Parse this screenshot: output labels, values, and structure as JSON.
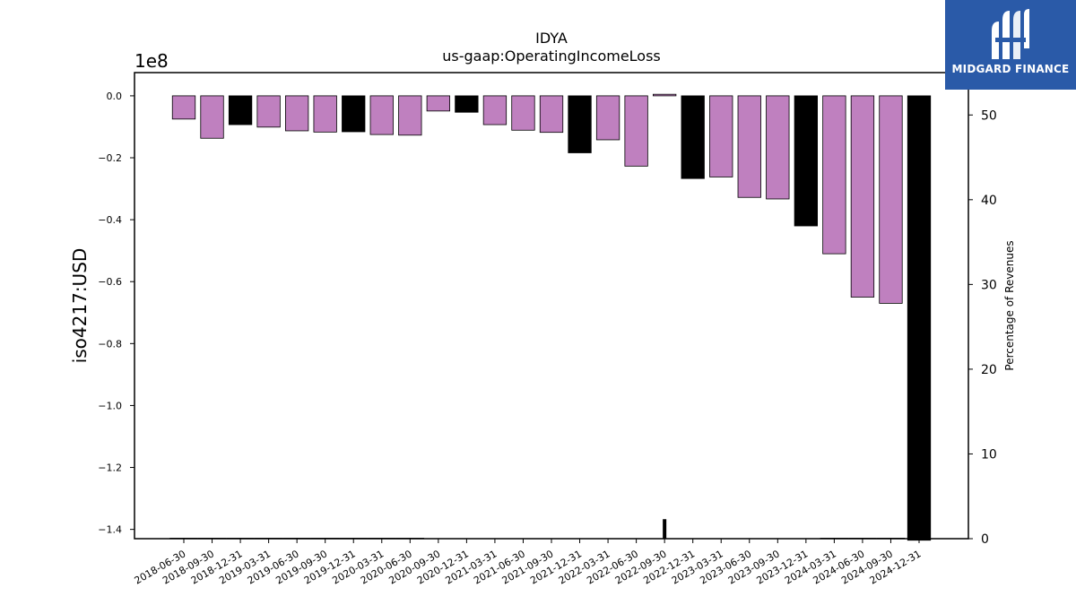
{
  "chart_data": {
    "type": "bar",
    "title": "IDYA",
    "subtitle": "us-gaap:OperatingIncomeLoss",
    "ylabel": "iso4217:USD",
    "y2label": "Percentage of Revenues",
    "offset_label": "1e8",
    "ylim": [
      -1.43,
      0.075
    ],
    "y2lim": [
      0,
      55
    ],
    "yticks": [
      0.0,
      -0.2,
      -0.4,
      -0.6,
      -0.8,
      -1.0,
      -1.2,
      -1.4
    ],
    "ytick_labels": [
      "0.0",
      "−0.2",
      "−0.4",
      "−0.6",
      "−0.8",
      "−1.0",
      "−1.2",
      "−1.4"
    ],
    "y2ticks": [
      0,
      10,
      20,
      30,
      40,
      50
    ],
    "categories": [
      "2018-06-30",
      "2018-09-30",
      "2018-12-31",
      "2019-03-31",
      "2019-06-30",
      "2019-09-30",
      "2019-12-31",
      "2020-03-31",
      "2020-06-30",
      "2020-09-30",
      "2020-12-31",
      "2021-03-31",
      "2021-06-30",
      "2021-09-30",
      "2021-12-31",
      "2022-03-31",
      "2022-06-30",
      "2022-09-30",
      "2022-12-31",
      "2023-03-31",
      "2023-06-30",
      "2023-09-30",
      "2023-12-31",
      "2024-03-31",
      "2024-06-30",
      "2024-09-30",
      "2024-12-31"
    ],
    "values": [
      -0.075,
      -0.137,
      -0.093,
      -0.101,
      -0.113,
      -0.117,
      -0.116,
      -0.125,
      -0.127,
      -0.049,
      -0.053,
      -0.093,
      -0.111,
      -0.118,
      -0.184,
      -0.142,
      -0.227,
      0.005,
      -0.267,
      -0.262,
      -0.328,
      -0.333,
      -0.42,
      -0.51,
      -0.65,
      -0.67,
      -1.435
    ],
    "bar_colors": [
      "#bf80bf",
      "#bf80bf",
      "#000000",
      "#bf80bf",
      "#bf80bf",
      "#bf80bf",
      "#000000",
      "#bf80bf",
      "#bf80bf",
      "#bf80bf",
      "#000000",
      "#bf80bf",
      "#bf80bf",
      "#bf80bf",
      "#000000",
      "#bf80bf",
      "#bf80bf",
      "#bf80bf",
      "#000000",
      "#bf80bf",
      "#bf80bf",
      "#bf80bf",
      "#000000",
      "#bf80bf",
      "#bf80bf",
      "#bf80bf",
      "#000000"
    ],
    "pct_of_revenues": [
      0.1,
      0.1,
      0.1,
      0.1,
      0.1,
      0.1,
      0.1,
      0.1,
      0.1,
      null,
      null,
      null,
      null,
      null,
      null,
      null,
      null,
      2.3,
      null,
      null,
      null,
      null,
      null,
      0.1,
      0.1,
      0.1,
      null
    ],
    "legend": "none",
    "grid": false
  },
  "logo": {
    "text": "MIDGARD FINANCE"
  },
  "colors": {
    "purple": "#bf80bf",
    "black": "#000000",
    "logo_bg": "#2a5aa8"
  }
}
